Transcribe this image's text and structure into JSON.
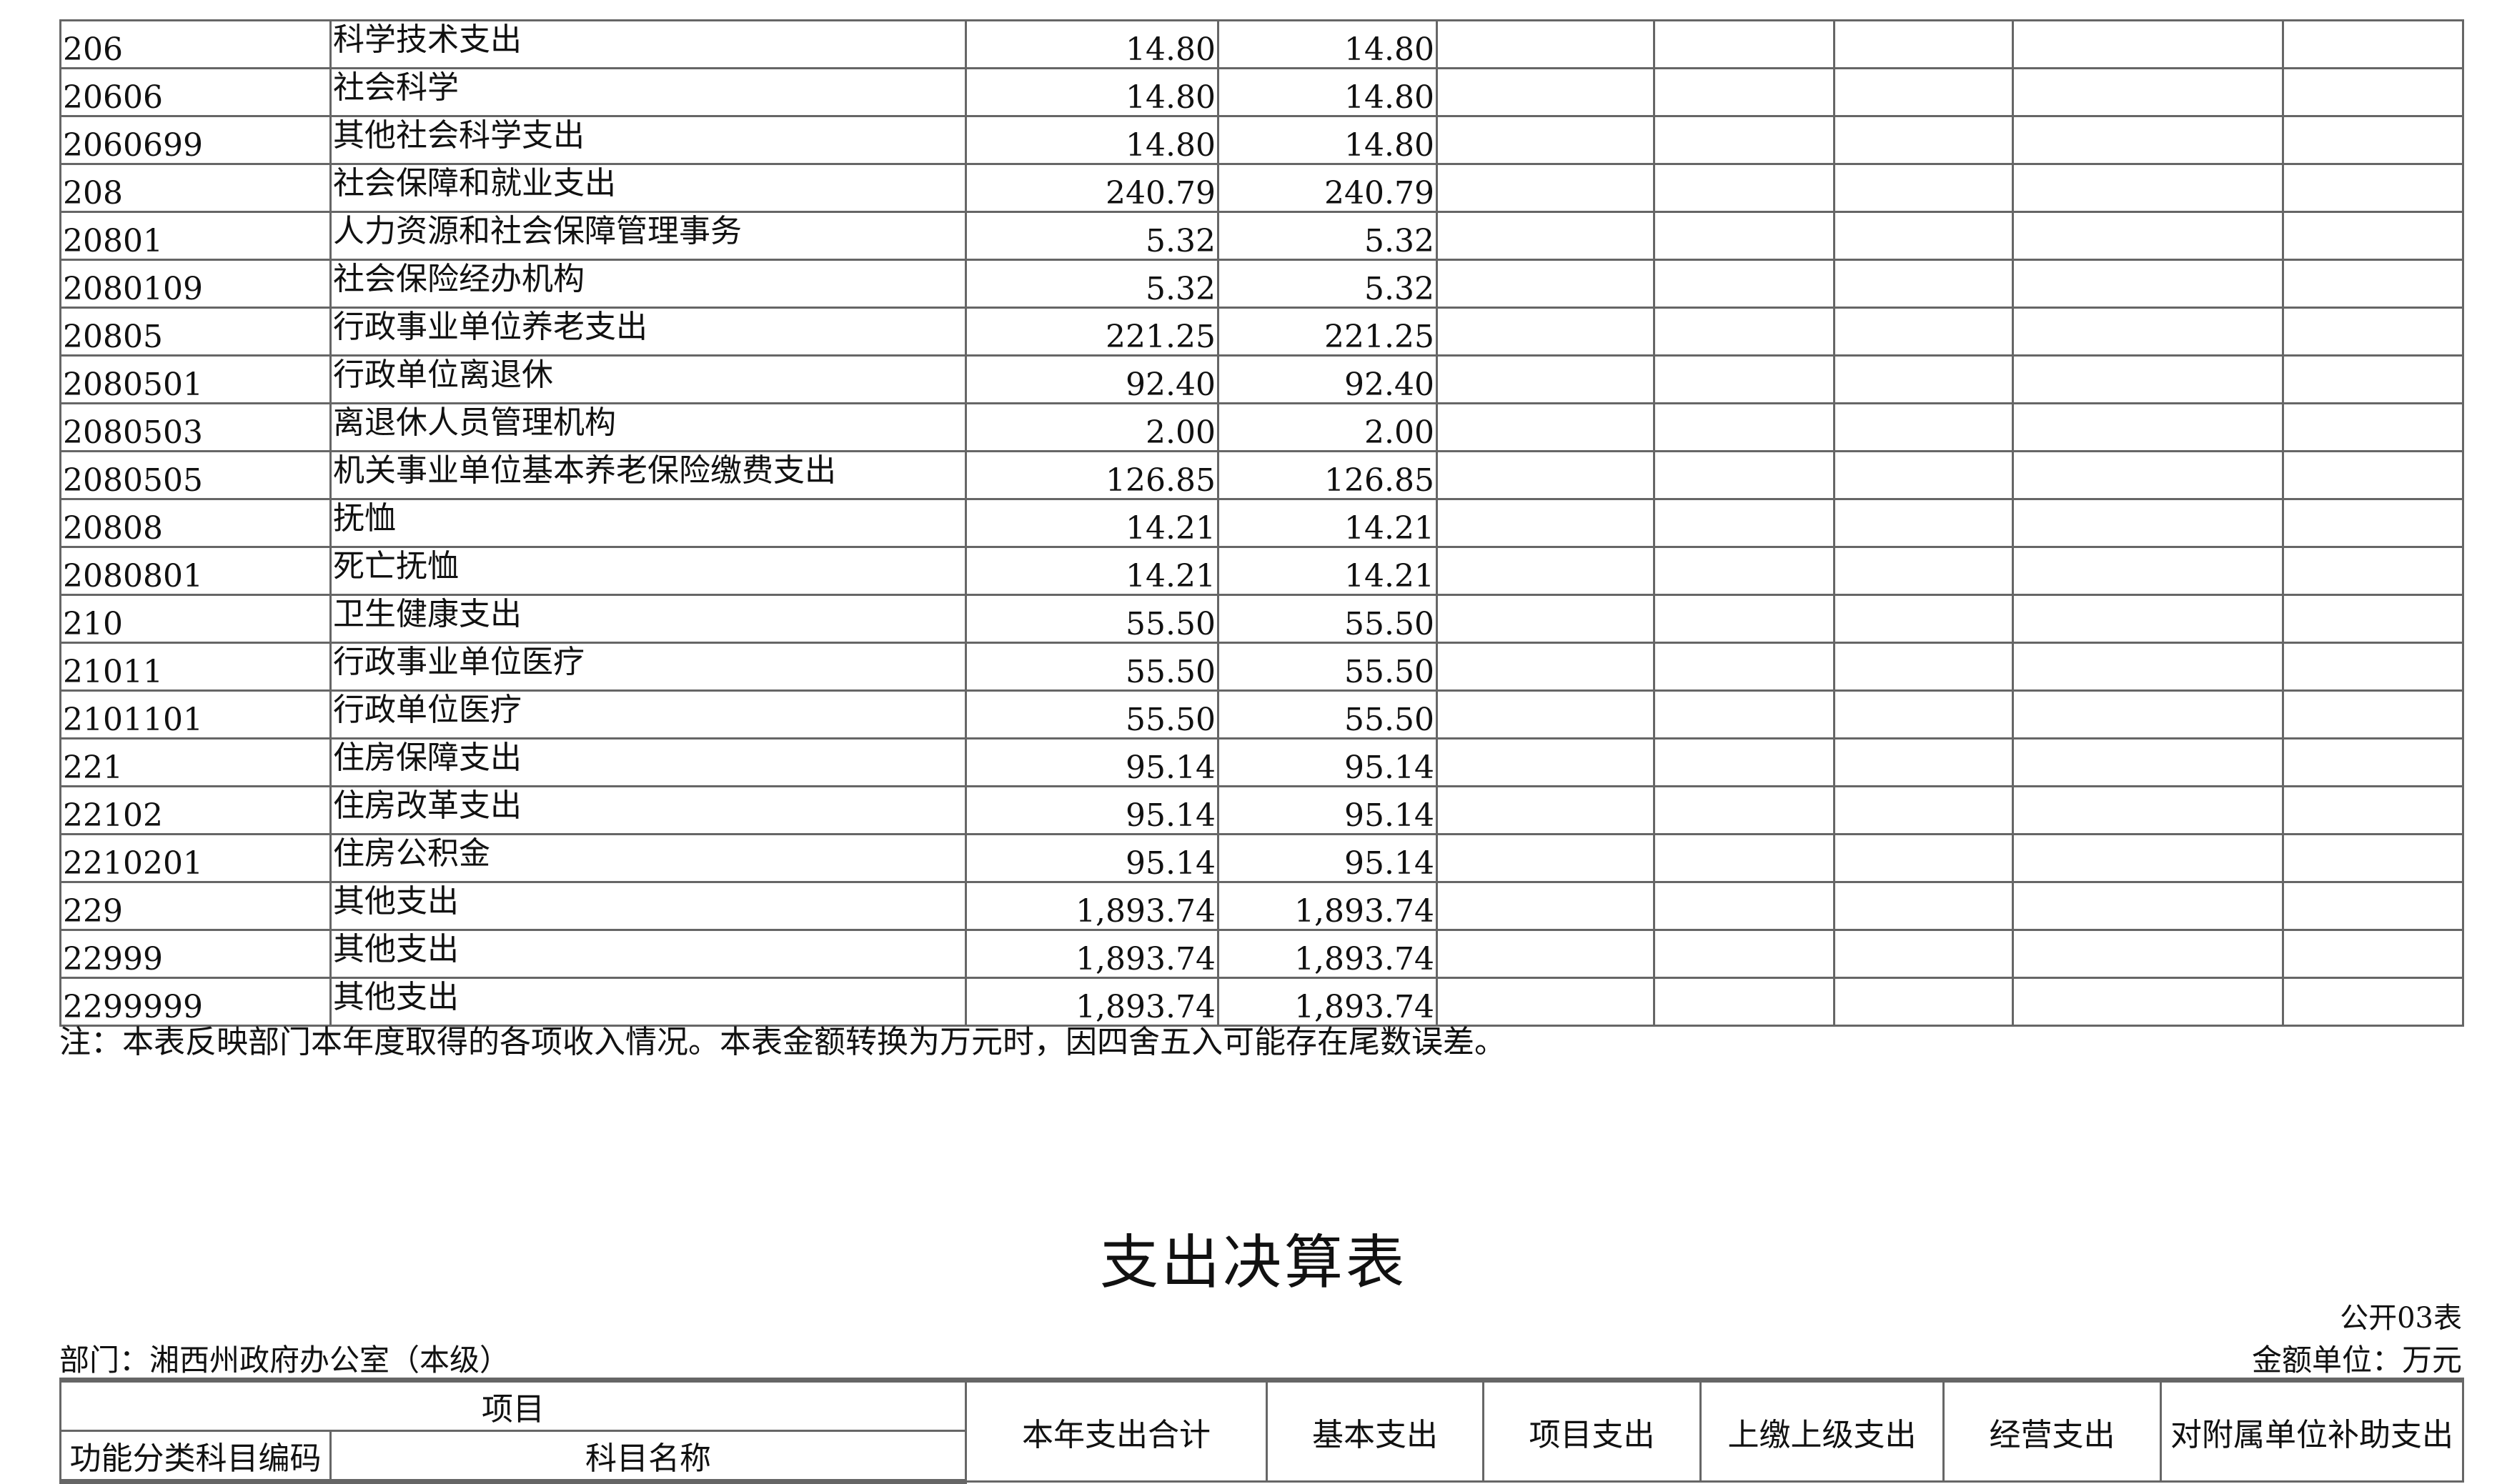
{
  "table": {
    "rows": [
      {
        "code": "206",
        "name": "科学技术支出",
        "total": "14.80",
        "basic": "14.80"
      },
      {
        "code": "20606",
        "name": "社会科学",
        "total": "14.80",
        "basic": "14.80"
      },
      {
        "code": "2060699",
        "name": "其他社会科学支出",
        "total": "14.80",
        "basic": "14.80"
      },
      {
        "code": "208",
        "name": "社会保障和就业支出",
        "total": "240.79",
        "basic": "240.79"
      },
      {
        "code": "20801",
        "name": "人力资源和社会保障管理事务",
        "total": "5.32",
        "basic": "5.32"
      },
      {
        "code": "2080109",
        "name": "社会保险经办机构",
        "total": "5.32",
        "basic": "5.32"
      },
      {
        "code": "20805",
        "name": "行政事业单位养老支出",
        "total": "221.25",
        "basic": "221.25"
      },
      {
        "code": "2080501",
        "name": "行政单位离退休",
        "total": "92.40",
        "basic": "92.40"
      },
      {
        "code": "2080503",
        "name": "离退休人员管理机构",
        "total": "2.00",
        "basic": "2.00"
      },
      {
        "code": "2080505",
        "name": "机关事业单位基本养老保险缴费支出",
        "total": "126.85",
        "basic": "126.85"
      },
      {
        "code": "20808",
        "name": "抚恤",
        "total": "14.21",
        "basic": "14.21"
      },
      {
        "code": "2080801",
        "name": "死亡抚恤",
        "total": "14.21",
        "basic": "14.21"
      },
      {
        "code": "210",
        "name": "卫生健康支出",
        "total": "55.50",
        "basic": "55.50"
      },
      {
        "code": "21011",
        "name": "行政事业单位医疗",
        "total": "55.50",
        "basic": "55.50"
      },
      {
        "code": "2101101",
        "name": "行政单位医疗",
        "total": "55.50",
        "basic": "55.50"
      },
      {
        "code": "221",
        "name": "住房保障支出",
        "total": "95.14",
        "basic": "95.14"
      },
      {
        "code": "22102",
        "name": "住房改革支出",
        "total": "95.14",
        "basic": "95.14"
      },
      {
        "code": "2210201",
        "name": "住房公积金",
        "total": "95.14",
        "basic": "95.14"
      },
      {
        "code": "229",
        "name": "其他支出",
        "total": "1,893.74",
        "basic": "1,893.74"
      },
      {
        "code": "22999",
        "name": "其他支出",
        "total": "1,893.74",
        "basic": "1,893.74"
      },
      {
        "code": "2299999",
        "name": "其他支出",
        "total": "1,893.74",
        "basic": "1,893.74"
      }
    ],
    "note": "注：本表反映部门本年度取得的各项收入情况。本表金额转换为万元时，因四舍五入可能存在尾数误差。"
  },
  "next_table": {
    "title": "支出决算表",
    "table_no": "公开03表",
    "department": "部门：湘西州政府办公室（本级）",
    "unit": "金额单位：万元",
    "headers": {
      "item": "项目",
      "code": "功能分类科目编码",
      "name": "科目名称",
      "total": "本年支出合计",
      "basic": "基本支出",
      "project": "项目支出",
      "upper": "上缴上级支出",
      "business": "经营支出",
      "subsidy": "对附属单位补助支出"
    }
  }
}
